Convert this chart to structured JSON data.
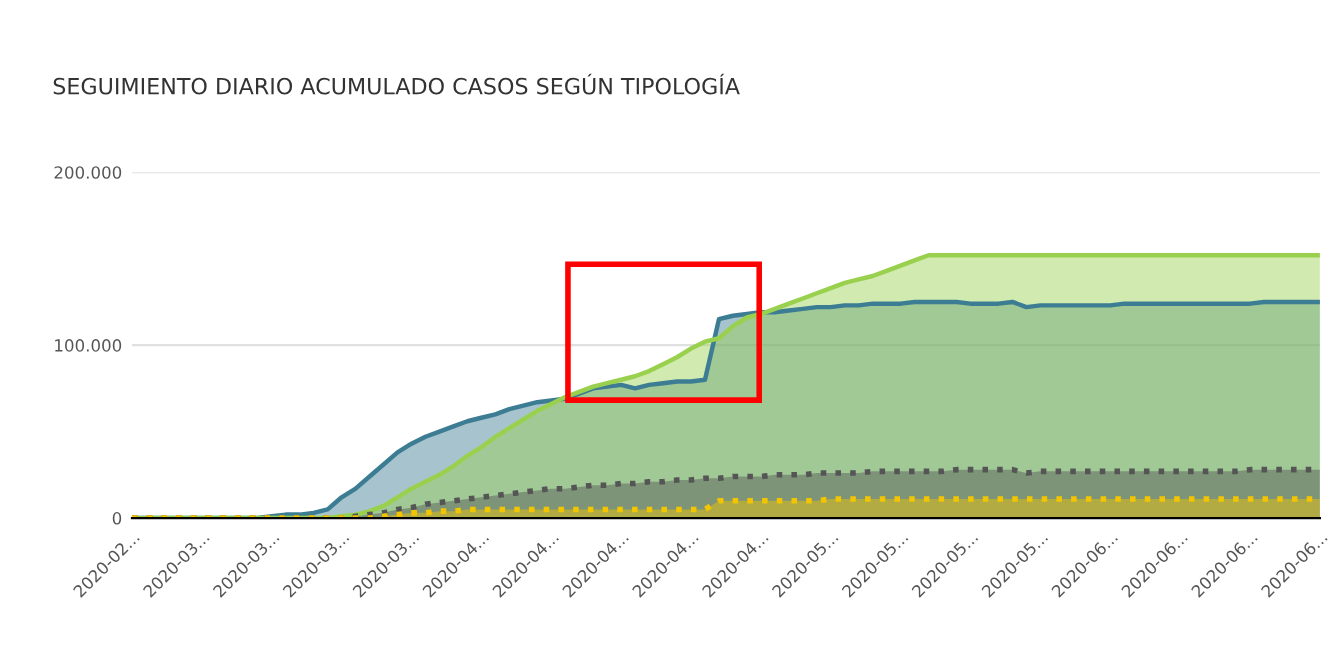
{
  "chart_data": {
    "type": "area",
    "title": "SEGUIMIENTO DIARIO ACUMULADO CASOS SEGÚN TIPOLOGÍA",
    "categories": [
      "2020-02...",
      null,
      null,
      null,
      null,
      "2020-03...",
      null,
      null,
      null,
      null,
      "2020-03...",
      null,
      null,
      null,
      null,
      "2020-03...",
      null,
      null,
      null,
      null,
      "2020-03...",
      null,
      null,
      null,
      null,
      "2020-04...",
      null,
      null,
      null,
      null,
      "2020-04...",
      null,
      null,
      null,
      null,
      "2020-04...",
      null,
      null,
      null,
      null,
      "2020-04...",
      null,
      null,
      null,
      null,
      "2020-04...",
      null,
      null,
      null,
      null,
      "2020-05...",
      null,
      null,
      null,
      null,
      "2020-05...",
      null,
      null,
      null,
      null,
      "2020-05...",
      null,
      null,
      null,
      null,
      "2020-05...",
      null,
      null,
      null,
      null,
      "2020-06...",
      null,
      null,
      null,
      null,
      "2020-06...",
      null,
      null,
      null,
      null,
      "2020-06...",
      null,
      null,
      null,
      null,
      "2020-06..."
    ],
    "series": [
      {
        "color": "#3c7d93",
        "line_style": "solid",
        "values": [
          0,
          0,
          0,
          0,
          0,
          0,
          0,
          0,
          0,
          0,
          1000,
          2000,
          2000,
          3000,
          5000,
          12000,
          17000,
          24000,
          31000,
          38000,
          43000,
          47000,
          50000,
          53000,
          56000,
          58000,
          60000,
          63000,
          65000,
          67000,
          68000,
          69000,
          72000,
          75000,
          76000,
          77000,
          75000,
          77000,
          78000,
          79000,
          79000,
          80000,
          115000,
          117000,
          118000,
          119000,
          119000,
          120000,
          121000,
          122000,
          122000,
          123000,
          123000,
          124000,
          124000,
          124000,
          125000,
          125000,
          125000,
          125000,
          124000,
          124000,
          124000,
          125000,
          122000,
          123000,
          123000,
          123000,
          123000,
          123000,
          123000,
          124000,
          124000,
          124000,
          124000,
          124000,
          124000,
          124000,
          124000,
          124000,
          124000,
          125000,
          125000,
          125000,
          125000,
          125000
        ]
      },
      {
        "color": "#99d14f",
        "line_style": "solid",
        "values": [
          0,
          0,
          0,
          0,
          0,
          0,
          0,
          0,
          0,
          0,
          0,
          0,
          0,
          0,
          0,
          1000,
          2000,
          4000,
          7000,
          12000,
          17000,
          21000,
          25000,
          30000,
          36000,
          41000,
          47000,
          52000,
          57000,
          62000,
          66000,
          70000,
          73000,
          76000,
          78000,
          80000,
          82000,
          85000,
          89000,
          93000,
          98000,
          102000,
          104000,
          111000,
          116000,
          118000,
          121000,
          124000,
          127000,
          130000,
          133000,
          136000,
          138000,
          140000,
          143000,
          146000,
          149000,
          152000,
          152000,
          152000,
          152000,
          152000,
          152000,
          152000,
          152000,
          152000,
          152000,
          152000,
          152000,
          152000,
          152000,
          152000,
          152000,
          152000,
          152000,
          152000,
          152000,
          152000,
          152000,
          152000,
          152000,
          152000,
          152000,
          152000,
          152000,
          152000
        ]
      },
      {
        "color": "#555555",
        "line_style": "dotted",
        "values": [
          0,
          0,
          0,
          0,
          0,
          0,
          0,
          0,
          0,
          0,
          0,
          0,
          0,
          0,
          0,
          0,
          1000,
          2000,
          3000,
          5000,
          6000,
          8000,
          9000,
          10000,
          11000,
          12000,
          13000,
          14000,
          15000,
          16000,
          17000,
          17000,
          18000,
          19000,
          19000,
          20000,
          20000,
          21000,
          21000,
          22000,
          22000,
          23000,
          23000,
          24000,
          24000,
          24000,
          25000,
          25000,
          25000,
          26000,
          26000,
          26000,
          26000,
          27000,
          27000,
          27000,
          27000,
          27000,
          27000,
          28000,
          28000,
          28000,
          28000,
          28000,
          26000,
          27000,
          27000,
          27000,
          27000,
          27000,
          27000,
          27000,
          27000,
          27000,
          27000,
          27000,
          27000,
          27000,
          27000,
          27000,
          28000,
          28000,
          28000,
          28000,
          28000,
          28000
        ]
      },
      {
        "color": "#f2c500",
        "line_style": "dotted",
        "values": [
          0,
          0,
          0,
          0,
          0,
          0,
          0,
          0,
          0,
          0,
          0,
          0,
          0,
          0,
          0,
          0,
          0,
          0,
          1000,
          2000,
          3000,
          3000,
          4000,
          4000,
          5000,
          5000,
          5000,
          5000,
          5000,
          5000,
          5000,
          5000,
          5000,
          5000,
          5000,
          5000,
          5000,
          5000,
          5000,
          5000,
          5000,
          5000,
          10000,
          10000,
          10000,
          10000,
          10000,
          10000,
          10000,
          10000,
          11000,
          11000,
          11000,
          11000,
          11000,
          11000,
          11000,
          11000,
          11000,
          11000,
          11000,
          11000,
          11000,
          11000,
          11000,
          11000,
          11000,
          11000,
          11000,
          11000,
          11000,
          11000,
          11000,
          11000,
          11000,
          11000,
          11000,
          11000,
          11000,
          11000,
          11000,
          11000,
          11000,
          11000,
          11000,
          11000
        ]
      }
    ],
    "ylim": [
      0,
      200000
    ],
    "yticks": [
      {
        "value": 0,
        "label": "0"
      },
      {
        "value": 100000,
        "label": "100.000"
      },
      {
        "value": 200000,
        "label": "200.000"
      }
    ],
    "grid": "y",
    "legend": false
  }
}
